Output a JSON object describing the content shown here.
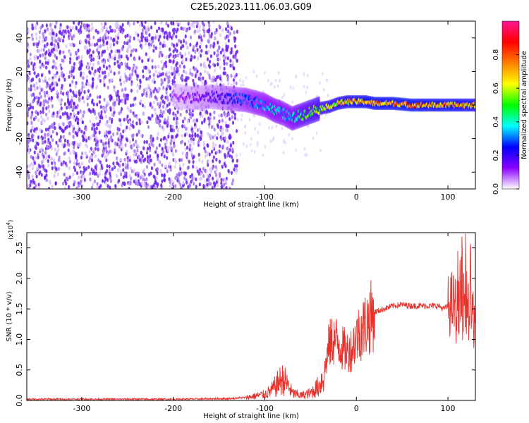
{
  "title": "C2E5.2023.111.06.03.G09",
  "colors": {
    "snr_line": "#e8312b",
    "spectrogram_scatter": "#7a2cf0",
    "ridge_low": "#1a00ff",
    "ridge_high": "#ff2222"
  },
  "chart_data": [
    {
      "type": "heatmap",
      "title": "C2E5.2023.111.06.03.G09",
      "xlabel": "Height of straight line (km)",
      "ylabel": "Frequency (Hz)",
      "xlim": [
        -360,
        130
      ],
      "ylim": [
        -50,
        50
      ],
      "xticks": [
        -300,
        -200,
        -100,
        0,
        100
      ],
      "yticks": [
        -40,
        -20,
        0,
        20,
        40
      ],
      "colorbar": {
        "label": "Normalized spectral amplitude",
        "range": [
          0.0,
          1.0
        ],
        "ticks": [
          "0.0",
          "0.2",
          "0.4",
          "0.6",
          "0.8"
        ],
        "colormap": [
          "#ffffff",
          "#8a00ff",
          "#0000ff",
          "#00ffff",
          "#00ff00",
          "#ffff00",
          "#ff8000",
          "#ff0000",
          "#ff1493"
        ]
      },
      "noise_region_km": [
        -360,
        -130
      ],
      "ridge": {
        "x": [
          -200,
          -180,
          -160,
          -140,
          -120,
          -100,
          -90,
          -80,
          -70,
          -60,
          -50,
          -40,
          -30,
          -20,
          -10,
          0,
          10,
          20,
          40,
          60,
          80,
          100,
          120,
          130
        ],
        "y": [
          6,
          4,
          5,
          4,
          3,
          0,
          -3,
          -5,
          -8,
          -6,
          -4,
          -2,
          -1,
          1,
          2,
          2,
          2,
          1,
          1,
          0,
          0,
          0,
          0,
          0
        ],
        "amplitude": [
          0.1,
          0.15,
          0.2,
          0.25,
          0.35,
          0.4,
          0.45,
          0.4,
          0.45,
          0.55,
          0.6,
          0.65,
          0.7,
          0.75,
          0.78,
          0.8,
          0.82,
          0.82,
          0.85,
          0.85,
          0.82,
          0.85,
          0.8,
          0.8
        ]
      }
    },
    {
      "type": "line",
      "xlabel": "Height of straight line (km)",
      "ylabel": "SNR (10 * v/v)",
      "y_multiplier": "(x10",
      "y_multiplier_exp": "4",
      "y_multiplier_close": ")",
      "xlim": [
        -360,
        130
      ],
      "ylim": [
        0,
        2.75
      ],
      "xticks": [
        -300,
        -200,
        -100,
        0,
        100
      ],
      "yticks": [
        "0.0",
        "0.5",
        "1.0",
        "1.5",
        "2.0",
        "2.5"
      ],
      "series": [
        {
          "x": [
            -360,
            -300,
            -200,
            -140,
            -120,
            -100,
            -95,
            -90,
            -85,
            -80,
            -75,
            -70,
            -60,
            -50,
            -40,
            -35,
            -30,
            -25,
            -20,
            -15,
            -10,
            -5,
            0,
            5,
            10,
            15,
            20,
            30,
            40,
            50,
            60,
            70,
            80,
            90,
            95,
            100,
            105,
            110,
            115,
            120,
            125,
            130
          ],
          "y": [
            0.02,
            0.02,
            0.02,
            0.03,
            0.05,
            0.1,
            0.14,
            0.2,
            0.3,
            0.35,
            0.25,
            0.12,
            0.08,
            0.12,
            0.25,
            0.45,
            0.9,
            1.0,
            0.95,
            0.85,
            0.8,
            0.85,
            1.05,
            1.15,
            1.25,
            1.35,
            1.45,
            1.5,
            1.55,
            1.57,
            1.55,
            1.55,
            1.55,
            1.55,
            1.5,
            1.55,
            1.6,
            1.45,
            1.5,
            1.6,
            1.4,
            1.35
          ]
        }
      ]
    }
  ]
}
